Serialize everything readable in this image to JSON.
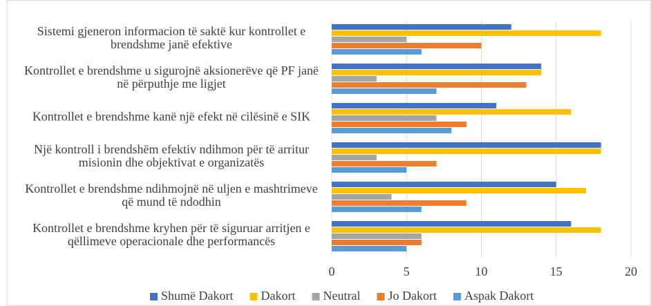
{
  "chart_data": {
    "type": "bar",
    "orientation": "horizontal",
    "categories": [
      "Sistemi gjeneron informacion të saktë kur kontrollet e brendshme janë efektive",
      "Kontrollet e brendshme u sigurojnë aksionerëve që PF janë në përputhje me ligjet",
      "Kontrollet e brendshme kanë një efekt në cilësinë e SIK",
      "Një kontroll i brendshëm efektiv ndihmon për të arritur misionin dhe objektivat e organizatës",
      "Kontrollet e brendshme ndihmojnë në uljen e mashtrimeve që mund të ndodhin",
      "Kontrollet e brendshme kryhen për të siguruar arritjen e qëllimeve operacionale dhe performancës"
    ],
    "series": [
      {
        "name": "Shumë Dakort",
        "color": "#4472c4",
        "values": [
          12,
          14,
          11,
          18,
          15,
          16
        ]
      },
      {
        "name": "Dakort",
        "color": "#ffc000",
        "values": [
          18,
          14,
          16,
          18,
          17,
          18
        ]
      },
      {
        "name": "Neutral",
        "color": "#a5a5a5",
        "values": [
          5,
          3,
          7,
          3,
          4,
          6
        ]
      },
      {
        "name": "Jo Dakort",
        "color": "#ed7d31",
        "values": [
          10,
          13,
          9,
          7,
          9,
          6
        ]
      },
      {
        "name": "Aspak Dakort",
        "color": "#5b9bd5",
        "values": [
          6,
          7,
          8,
          5,
          6,
          5
        ]
      }
    ],
    "xlim": [
      0,
      20
    ],
    "xticks": [
      0,
      5,
      10,
      15,
      20
    ],
    "grid": true,
    "legend": "bottom"
  }
}
